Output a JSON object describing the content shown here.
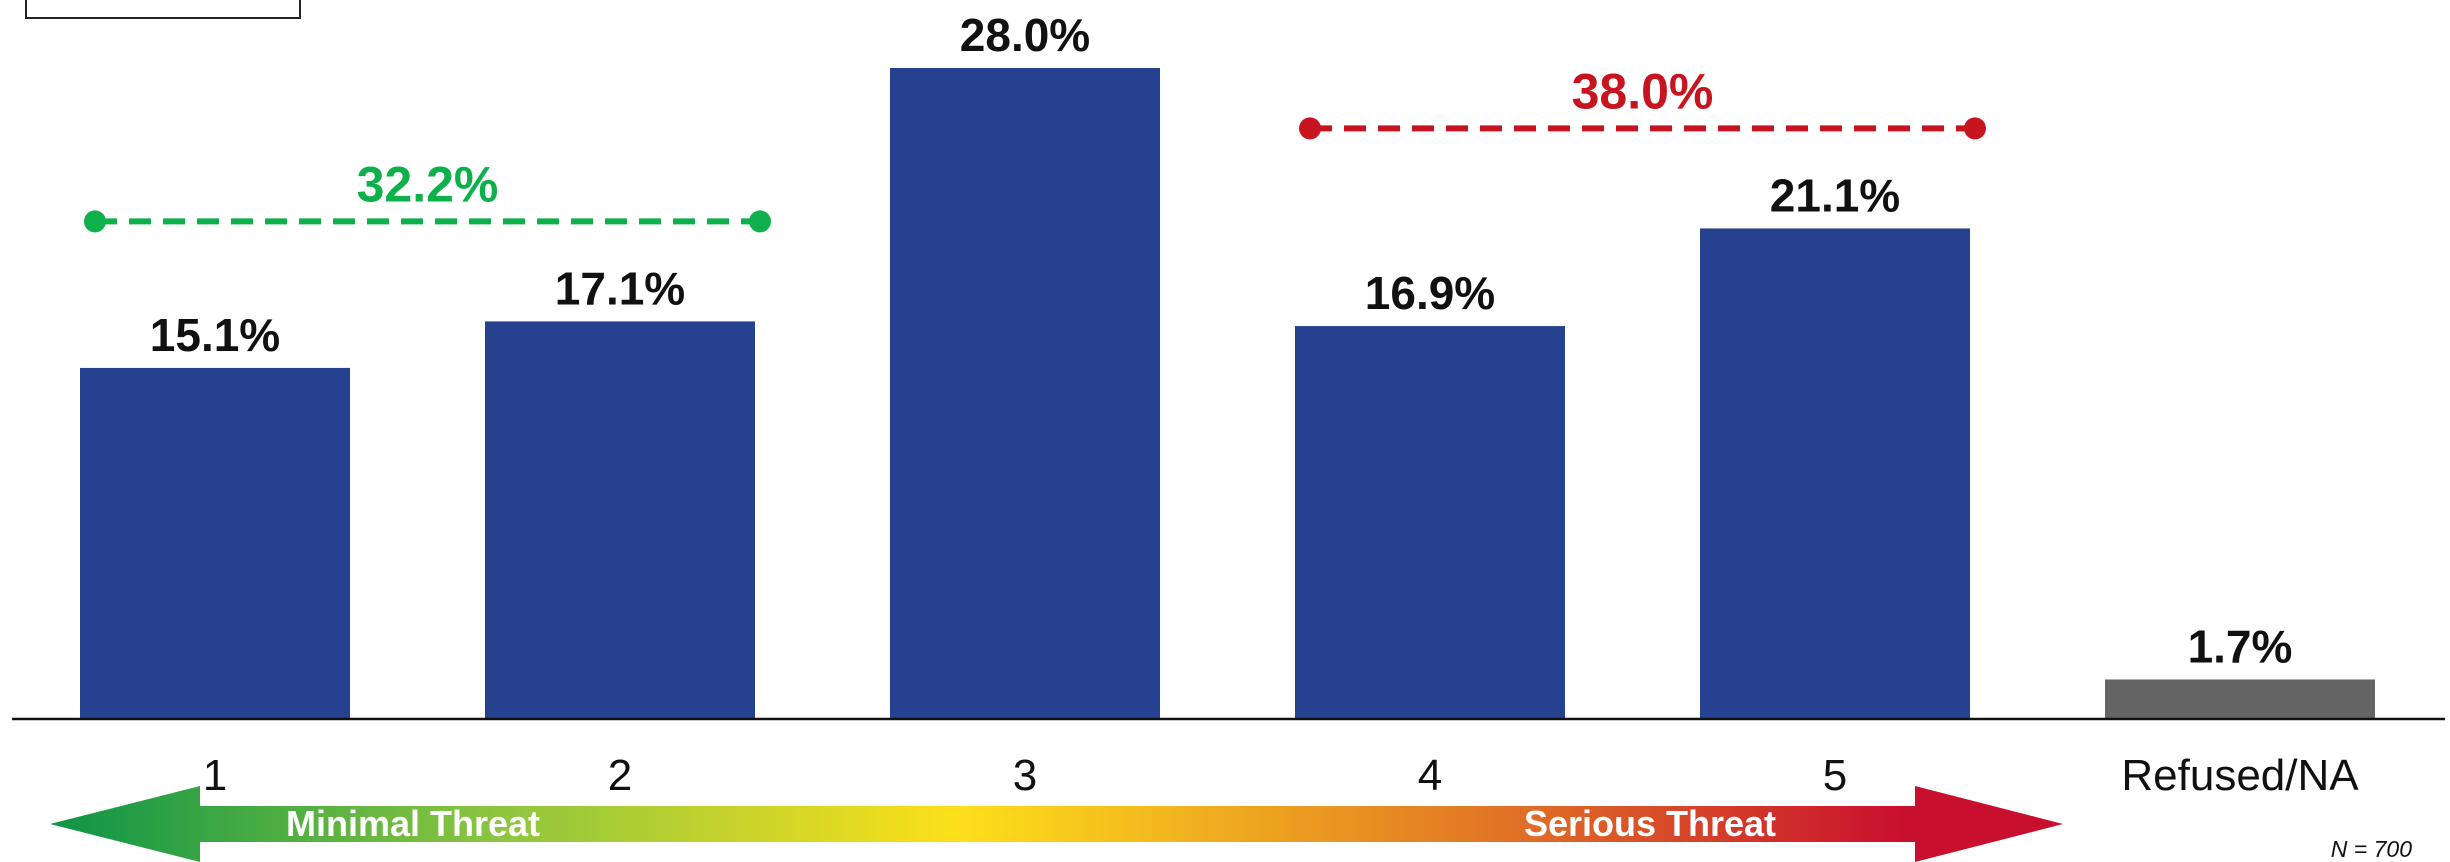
{
  "chart_data": {
    "type": "bar",
    "categories": [
      "1",
      "2",
      "3",
      "4",
      "5",
      "Refused/NA"
    ],
    "values": [
      15.1,
      17.1,
      28.0,
      16.9,
      21.1,
      1.7
    ],
    "value_labels": [
      "15.1%",
      "17.1%",
      "28.0%",
      "16.9%",
      "21.1%",
      "1.7%"
    ],
    "bar_colors": [
      "#25418f",
      "#25418f",
      "#25418f",
      "#25418f",
      "#25418f",
      "#656565"
    ],
    "ylim": [
      0,
      28.0
    ],
    "grid": false,
    "groups": [
      {
        "label": "32.2%",
        "value": 32.2,
        "from": "1",
        "to": "2",
        "color": "#0db04b"
      },
      {
        "label": "38.0%",
        "value": 38.0,
        "from": "4",
        "to": "5",
        "color": "#c8141f"
      }
    ],
    "scale": {
      "low_label": "Minimal Threat",
      "high_label": "Serious Threat",
      "colors": [
        "#0c9447",
        "#8bc53f",
        "#fde01a",
        "#e27425",
        "#c8102e"
      ]
    },
    "note": "N = 700"
  }
}
